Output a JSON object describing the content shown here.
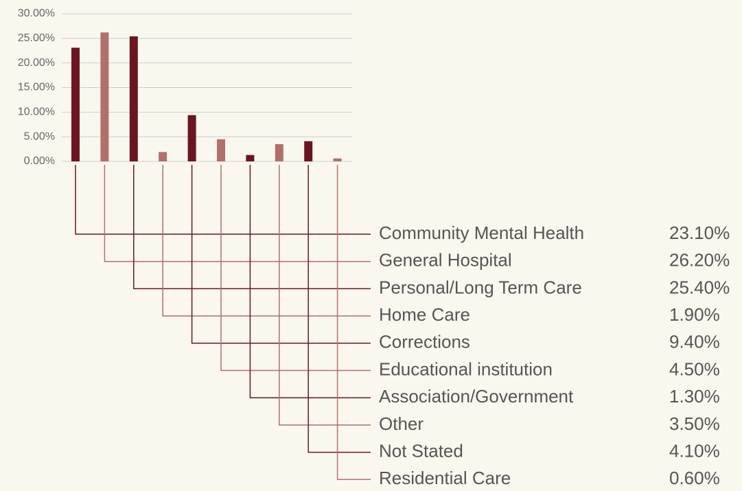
{
  "chart_data": {
    "type": "bar",
    "categories": [
      "Community Mental Health",
      "General Hospital",
      "Personal/Long Term Care",
      "Home Care",
      "Corrections",
      "Educational institution",
      "Association/Government",
      "Other",
      "Not Stated",
      "Residential Care"
    ],
    "values": [
      23.1,
      26.2,
      25.4,
      1.9,
      9.4,
      4.5,
      1.3,
      3.5,
      4.1,
      0.6
    ],
    "value_labels": [
      "23.10%",
      "26.20%",
      "25.40%",
      "1.90%",
      "9.40%",
      "4.50%",
      "1.30%",
      "3.50%",
      "4.10%",
      "0.60%"
    ],
    "colors": [
      "#6b1520",
      "#b0706b",
      "#6b1520",
      "#b0706b",
      "#6b1520",
      "#b0706b",
      "#6b1520",
      "#b0706b",
      "#6b1520",
      "#b0706b"
    ],
    "ylim": [
      0,
      30
    ],
    "yticks": [
      {
        "value": 0,
        "label": "0.00%"
      },
      {
        "value": 5,
        "label": "5.00%"
      },
      {
        "value": 10,
        "label": "10.00%"
      },
      {
        "value": 15,
        "label": "15.00%"
      },
      {
        "value": 20,
        "label": "20.00%"
      },
      {
        "value": 25,
        "label": "25.00%"
      },
      {
        "value": 30,
        "label": "30.00%"
      }
    ],
    "grid": true
  }
}
